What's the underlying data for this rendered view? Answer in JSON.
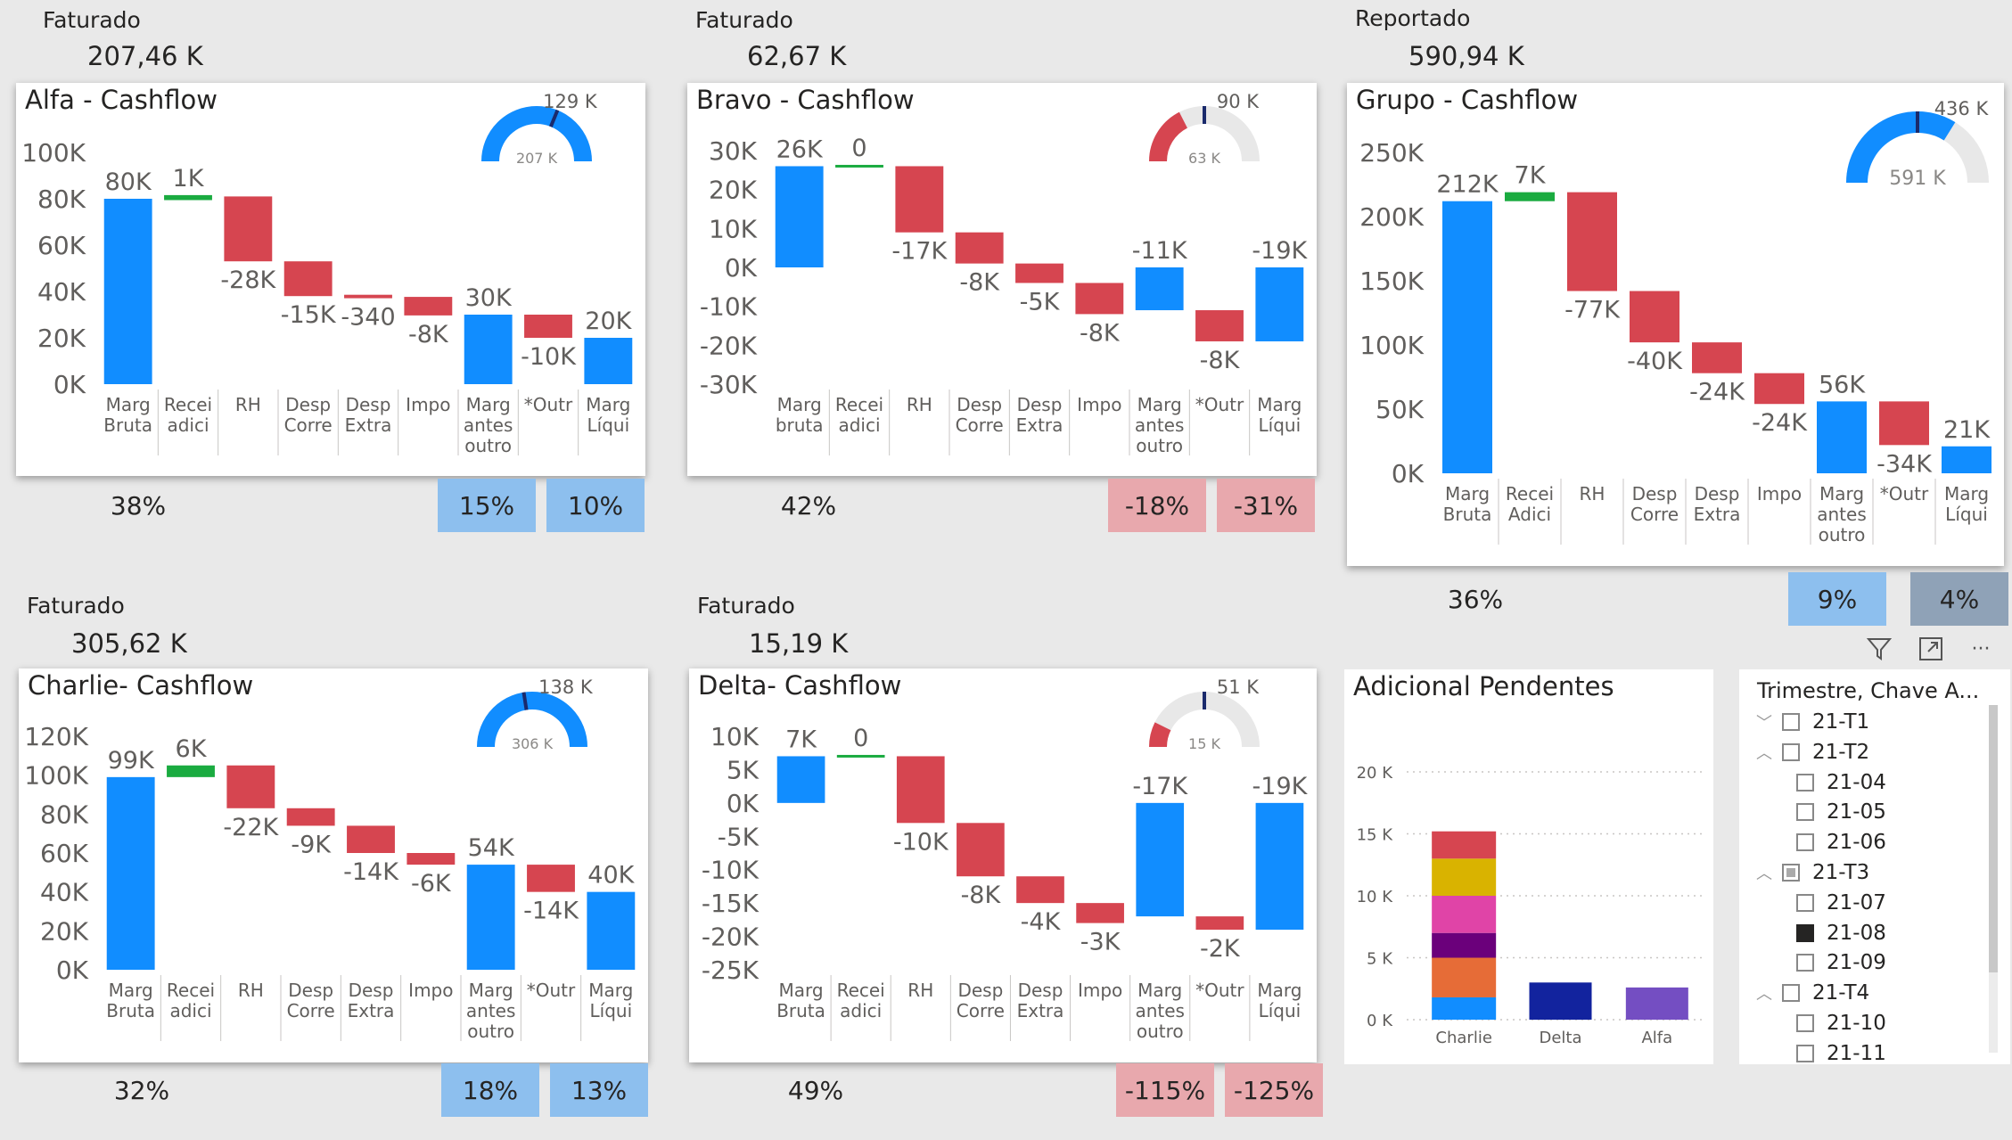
{
  "cards": [
    {
      "id": "alfa",
      "kpi_label": "Faturado",
      "kpi_value": "207,46 K",
      "title": "Alfa - Cashflow",
      "gauge": {
        "target_label": "129 K",
        "value_label": "207 K",
        "value": 207,
        "max": 207,
        "target": 129
      },
      "pct_left": "38%",
      "pct_a": "15%",
      "pct_b": "10%",
      "pct_color": "blue"
    },
    {
      "id": "bravo",
      "kpi_label": "Faturado",
      "kpi_value": "62,67 K",
      "title": "Bravo - Cashflow",
      "gauge": {
        "target_label": "90 K",
        "value_label": "63 K",
        "value": 63,
        "max": 180,
        "target": 90
      },
      "pct_left": "42%",
      "pct_a": "-18%",
      "pct_b": "-31%",
      "pct_color": "red"
    },
    {
      "id": "grupo",
      "kpi_label": "Reportado",
      "kpi_value": "590,94 K",
      "title": "Grupo - Cashflow",
      "gauge": {
        "target_label": "436 K",
        "value_label": "591 K",
        "value": 591,
        "max": 872,
        "target": 436
      },
      "pct_left": "36%",
      "pct_a": "9%",
      "pct_b": "4%",
      "pct_color": "mixed"
    },
    {
      "id": "charlie",
      "kpi_label": "Faturado",
      "kpi_value": "305,62 K",
      "title": "Charlie- Cashflow",
      "gauge": {
        "target_label": "138 K",
        "value_label": "306 K",
        "value": 306,
        "max": 306,
        "target": 138
      },
      "pct_left": "32%",
      "pct_a": "18%",
      "pct_b": "13%",
      "pct_color": "blue"
    },
    {
      "id": "delta",
      "kpi_label": "Faturado",
      "kpi_value": "15,19 K",
      "title": "Delta- Cashflow",
      "gauge": {
        "target_label": "51 K",
        "value_label": "15 K",
        "value": 15,
        "max": 102,
        "target": 51
      },
      "pct_left": "49%",
      "pct_a": "-115%",
      "pct_b": "-125%",
      "pct_color": "red"
    }
  ],
  "colors": {
    "total": "#118dff",
    "increase": "#1aab40",
    "decrease": "#d64550",
    "gauge_fill": "#118dff",
    "gauge_track": "#e8e8e8",
    "target": "#1a2a6c"
  },
  "chart_data": [
    {
      "type": "waterfall",
      "id": "alfa",
      "title": "Alfa - Cashflow",
      "categories": [
        [
          "Marg",
          "Bruta"
        ],
        [
          "Recei",
          "adici"
        ],
        [
          "RH"
        ],
        [
          "Desp",
          "Corre"
        ],
        [
          "Desp",
          "Extra"
        ],
        [
          "Impo"
        ],
        [
          "Marg",
          "antes",
          "outro"
        ],
        [
          "*Outr"
        ],
        [
          "Marg",
          "Líqui"
        ]
      ],
      "kinds": [
        "total",
        "increase",
        "decrease",
        "decrease",
        "decrease",
        "decrease",
        "total",
        "decrease",
        "total"
      ],
      "values": [
        80,
        1,
        -28,
        -15,
        -0.34,
        -8,
        30,
        -10,
        20
      ],
      "labels": [
        "80K",
        "1K",
        "-28K",
        "-15K",
        "-340",
        "-8K",
        "30K",
        "-10K",
        "20K"
      ],
      "ylim": [
        0,
        100
      ],
      "yticks": [
        0,
        20,
        40,
        60,
        80,
        100
      ],
      "ytick_labels": [
        "0K",
        "20K",
        "40K",
        "60K",
        "80K",
        "100K"
      ]
    },
    {
      "type": "waterfall",
      "id": "bravo",
      "title": "Bravo - Cashflow",
      "categories": [
        [
          "Marg",
          "bruta"
        ],
        [
          "Recei",
          "adici"
        ],
        [
          "RH"
        ],
        [
          "Desp",
          "Corre"
        ],
        [
          "Desp",
          "Extra"
        ],
        [
          "Impo"
        ],
        [
          "Marg",
          "antes",
          "outro"
        ],
        [
          "*Outr"
        ],
        [
          "Marg",
          "Líqui"
        ]
      ],
      "kinds": [
        "total",
        "increase",
        "decrease",
        "decrease",
        "decrease",
        "decrease",
        "total",
        "decrease",
        "total"
      ],
      "values": [
        26,
        0,
        -17,
        -8,
        -5,
        -8,
        -11,
        -8,
        -19
      ],
      "labels": [
        "26K",
        "0",
        "-17K",
        "-8K",
        "-5K",
        "-8K",
        "-11K",
        "-8K",
        "-19K"
      ],
      "ylim": [
        -30,
        30
      ],
      "yticks": [
        -30,
        -20,
        -10,
        0,
        10,
        20,
        30
      ],
      "ytick_labels": [
        "-30K",
        "-20K",
        "-10K",
        "0K",
        "10K",
        "20K",
        "30K"
      ]
    },
    {
      "type": "waterfall",
      "id": "grupo",
      "title": "Grupo - Cashflow",
      "categories": [
        [
          "Marg",
          "Bruta"
        ],
        [
          "Recei",
          "Adici"
        ],
        [
          "RH"
        ],
        [
          "Desp",
          "Corre"
        ],
        [
          "Desp",
          "Extra"
        ],
        [
          "Impo"
        ],
        [
          "Marg",
          "antes",
          "outro"
        ],
        [
          "*Outr"
        ],
        [
          "Marg",
          "Líqui"
        ]
      ],
      "kinds": [
        "total",
        "increase",
        "decrease",
        "decrease",
        "decrease",
        "decrease",
        "total",
        "decrease",
        "total"
      ],
      "values": [
        212,
        7,
        -77,
        -40,
        -24,
        -24,
        56,
        -34,
        21
      ],
      "labels": [
        "212K",
        "7K",
        "-77K",
        "-40K",
        "-24K",
        "-24K",
        "56K",
        "-34K",
        "21K"
      ],
      "ylim": [
        0,
        250
      ],
      "yticks": [
        0,
        50,
        100,
        150,
        200,
        250
      ],
      "ytick_labels": [
        "0K",
        "50K",
        "100K",
        "150K",
        "200K",
        "250K"
      ]
    },
    {
      "type": "waterfall",
      "id": "charlie",
      "title": "Charlie- Cashflow",
      "categories": [
        [
          "Marg",
          "Bruta"
        ],
        [
          "Recei",
          "adici"
        ],
        [
          "RH"
        ],
        [
          "Desp",
          "Corre"
        ],
        [
          "Desp",
          "Extra"
        ],
        [
          "Impo"
        ],
        [
          "Marg",
          "antes",
          "outro"
        ],
        [
          "*Outr"
        ],
        [
          "Marg",
          "Líqui"
        ]
      ],
      "kinds": [
        "total",
        "increase",
        "decrease",
        "decrease",
        "decrease",
        "decrease",
        "total",
        "decrease",
        "total"
      ],
      "values": [
        99,
        6,
        -22,
        -9,
        -14,
        -6,
        54,
        -14,
        40
      ],
      "labels": [
        "99K",
        "6K",
        "-22K",
        "-9K",
        "-14K",
        "-6K",
        "54K",
        "-14K",
        "40K"
      ],
      "ylim": [
        0,
        120
      ],
      "yticks": [
        0,
        20,
        40,
        60,
        80,
        100,
        120
      ],
      "ytick_labels": [
        "0K",
        "20K",
        "40K",
        "60K",
        "80K",
        "100K",
        "120K"
      ]
    },
    {
      "type": "waterfall",
      "id": "delta",
      "title": "Delta- Cashflow",
      "categories": [
        [
          "Marg",
          "Bruta"
        ],
        [
          "Recei",
          "adici"
        ],
        [
          "RH"
        ],
        [
          "Desp",
          "Corre"
        ],
        [
          "Desp",
          "Extra"
        ],
        [
          "Impo"
        ],
        [
          "Marg",
          "antes",
          "outro"
        ],
        [
          "*Outr"
        ],
        [
          "Marg",
          "Líqui"
        ]
      ],
      "kinds": [
        "total",
        "increase",
        "decrease",
        "decrease",
        "decrease",
        "decrease",
        "total",
        "decrease",
        "total"
      ],
      "values": [
        7,
        0,
        -10,
        -8,
        -4,
        -3,
        -17,
        -2,
        -19
      ],
      "labels": [
        "7K",
        "0",
        "-10K",
        "-8K",
        "-4K",
        "-3K",
        "-17K",
        "-2K",
        "-19K"
      ],
      "ylim": [
        -25,
        10
      ],
      "yticks": [
        -25,
        -20,
        -15,
        -10,
        -5,
        0,
        5,
        10
      ],
      "ytick_labels": [
        "-25K",
        "-20K",
        "-15K",
        "-10K",
        "-5K",
        "0K",
        "5K",
        "10K"
      ]
    },
    {
      "type": "bar",
      "stacked": true,
      "id": "adicional",
      "title": "Adicional Pendentes",
      "categories": [
        "Charlie",
        "Delta",
        "Alfa"
      ],
      "stacks": [
        [
          {
            "value": 1.8,
            "color": "#118dff"
          },
          {
            "value": 3.2,
            "color": "#e66c37"
          },
          {
            "value": 2.0,
            "color": "#6b007b"
          },
          {
            "value": 3.0,
            "color": "#e044a7"
          },
          {
            "value": 3.0,
            "color": "#d9b300"
          },
          {
            "value": 2.2,
            "color": "#d64550"
          }
        ],
        [
          {
            "value": 3.0,
            "color": "#12239e"
          }
        ],
        [
          {
            "value": 2.6,
            "color": "#744ec2"
          }
        ]
      ],
      "ylim": [
        0,
        20
      ],
      "yticks": [
        0,
        5,
        10,
        15,
        20
      ],
      "ytick_labels": [
        "0 K",
        "5 K",
        "10 K",
        "15 K",
        "20 K"
      ]
    }
  ],
  "toolbar": {
    "filter_icon": "filter-icon",
    "focus_icon": "focus-mode-icon",
    "more_icon": "more-options-icon",
    "more_label": "···"
  },
  "slicer": {
    "header": "Trimestre, Chave A...",
    "items": [
      {
        "label": "21-T1",
        "level": 0,
        "chevron": "down",
        "state": "empty"
      },
      {
        "label": "21-T2",
        "level": 0,
        "chevron": "up",
        "state": "empty"
      },
      {
        "label": "21-04",
        "level": 1,
        "state": "empty"
      },
      {
        "label": "21-05",
        "level": 1,
        "state": "empty"
      },
      {
        "label": "21-06",
        "level": 1,
        "state": "empty"
      },
      {
        "label": "21-T3",
        "level": 0,
        "chevron": "up",
        "state": "partial"
      },
      {
        "label": "21-07",
        "level": 1,
        "state": "empty"
      },
      {
        "label": "21-08",
        "level": 1,
        "state": "filled"
      },
      {
        "label": "21-09",
        "level": 1,
        "state": "empty"
      },
      {
        "label": "21-T4",
        "level": 0,
        "chevron": "up",
        "state": "empty"
      },
      {
        "label": "21-10",
        "level": 1,
        "state": "empty"
      },
      {
        "label": "21-11",
        "level": 1,
        "state": "empty"
      }
    ]
  }
}
